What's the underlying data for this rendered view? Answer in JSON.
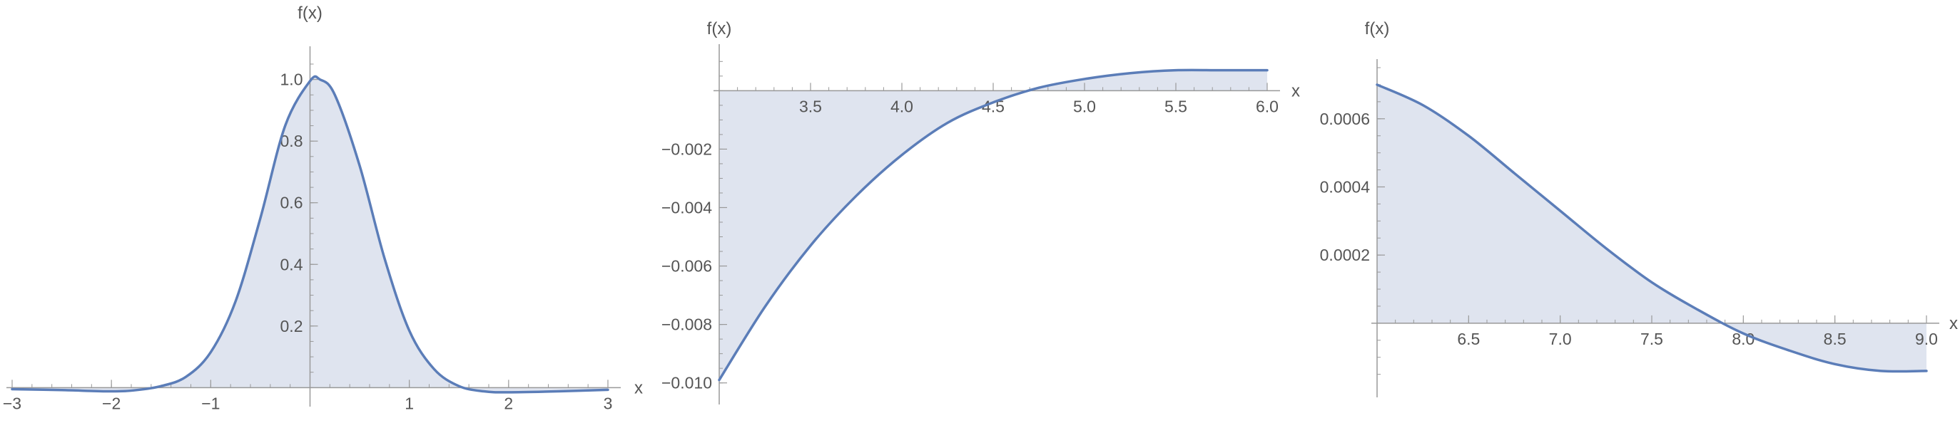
{
  "colors": {
    "curve": "#5b7db8",
    "fill": "#dfe4ef",
    "axis": "#999999",
    "text": "#555555"
  },
  "chart_data": [
    {
      "type": "area",
      "function_samples": {
        "x": [
          -3,
          -2.5,
          -2,
          -1.75,
          -1.5,
          -1.25,
          -1,
          -0.75,
          -0.5,
          -0.25,
          0,
          0.1,
          0.25,
          0.5,
          0.75,
          1,
          1.25,
          1.5,
          1.75,
          2,
          2.5,
          3
        ],
        "y": [
          -0.005,
          -0.008,
          -0.012,
          -0.008,
          0.005,
          0.035,
          0.115,
          0.28,
          0.55,
          0.85,
          0.995,
          1.0,
          0.95,
          0.72,
          0.42,
          0.185,
          0.06,
          0.005,
          -0.012,
          -0.015,
          -0.012,
          -0.007
        ]
      },
      "xlabel": "x",
      "ylabel": "f(x)",
      "xlim": [
        -3,
        3
      ],
      "ylim": [
        -0.02,
        1.08
      ],
      "x_ticks": [
        -3,
        -2,
        -1,
        1,
        2,
        3
      ],
      "x_tick_labels": [
        "−3",
        "−2",
        "−1",
        "1",
        "2",
        "3"
      ],
      "y_ticks": [
        0.2,
        0.4,
        0.6,
        0.8,
        1.0
      ],
      "y_tick_labels": [
        "0.2",
        "0.4",
        "0.6",
        "0.8",
        "1.0"
      ],
      "filled_to_axis": true
    },
    {
      "type": "area",
      "function_samples": {
        "x": [
          3,
          3.25,
          3.5,
          3.75,
          4.0,
          4.25,
          4.5,
          4.75,
          5.0,
          5.25,
          5.5,
          5.75,
          6.0
        ],
        "y": [
          -0.0099,
          -0.0074,
          -0.0053,
          -0.0036,
          -0.0022,
          -0.0011,
          -0.0004,
          0.0001,
          0.0004,
          0.0006,
          0.0007,
          0.0007,
          0.0007
        ]
      },
      "xlabel": "x",
      "ylabel": "f(x)",
      "xlim": [
        3,
        6
      ],
      "ylim": [
        -0.0103,
        0.0013
      ],
      "x_ticks": [
        3.5,
        4.0,
        4.5,
        5.0,
        5.5,
        6.0
      ],
      "x_tick_labels": [
        "3.5",
        "4.0",
        "4.5",
        "5.0",
        "5.5",
        "6.0"
      ],
      "y_ticks": [
        -0.002,
        -0.004,
        -0.006,
        -0.008,
        -0.01
      ],
      "y_tick_labels": [
        "−0.002",
        "−0.004",
        "−0.006",
        "−0.008",
        "−0.010"
      ],
      "filled_to_axis": true
    },
    {
      "type": "area",
      "function_samples": {
        "x": [
          6,
          6.25,
          6.5,
          6.75,
          7.0,
          7.25,
          7.5,
          7.75,
          8.0,
          8.25,
          8.5,
          8.75,
          9.0
        ],
        "y": [
          0.0007,
          0.00064,
          0.00055,
          0.00044,
          0.00033,
          0.00022,
          0.00012,
          4e-05,
          -3e-05,
          -8e-05,
          -0.00012,
          -0.00014,
          -0.00014
        ]
      },
      "xlabel": "x",
      "ylabel": "f(x)",
      "xlim": [
        6,
        9
      ],
      "ylim": [
        -0.00018,
        0.00075
      ],
      "x_ticks": [
        6.5,
        7.0,
        7.5,
        8.0,
        8.5,
        9.0
      ],
      "x_tick_labels": [
        "6.5",
        "7.0",
        "7.5",
        "8.0",
        "8.5",
        "9.0"
      ],
      "y_ticks": [
        0.0002,
        0.0004,
        0.0006
      ],
      "y_tick_labels": [
        "0.0002",
        "0.0004",
        "0.0006"
      ],
      "filled_to_axis": true
    }
  ]
}
